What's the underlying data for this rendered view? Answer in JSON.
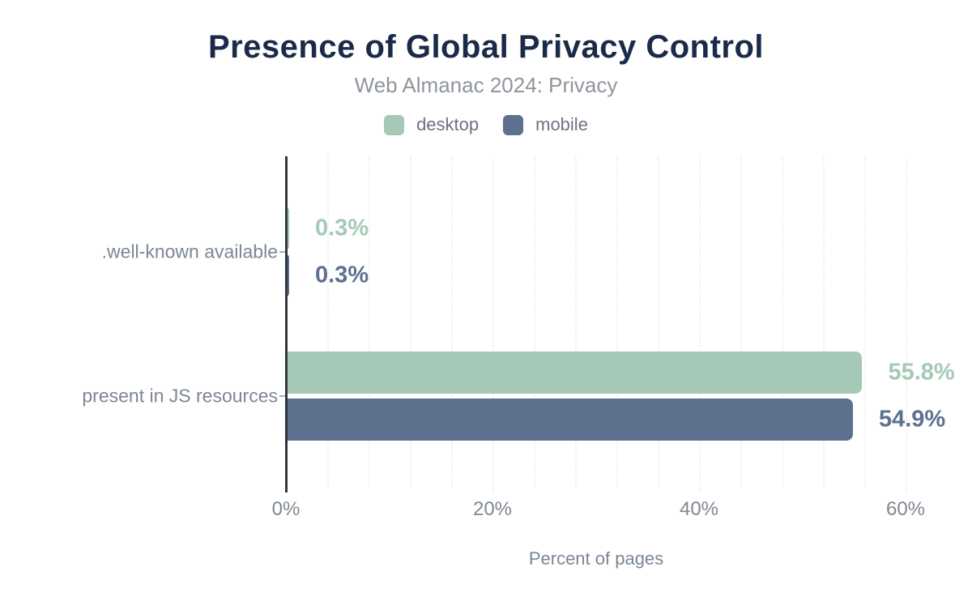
{
  "header": {
    "title": "Presence of Global Privacy Control",
    "subtitle": "Web Almanac 2024: Privacy"
  },
  "legend": [
    {
      "label": "desktop",
      "color": "#a5c9b6"
    },
    {
      "label": "mobile",
      "color": "#5d718e"
    }
  ],
  "chart_data": {
    "type": "bar",
    "orientation": "horizontal",
    "title": "Presence of Global Privacy Control",
    "subtitle": "Web Almanac 2024: Privacy",
    "categories": [
      ".well-known available",
      "present in JS resources"
    ],
    "series": [
      {
        "name": "desktop",
        "color": "#a5c9b6",
        "values": [
          0.3,
          55.8
        ],
        "value_labels": [
          "0.3%",
          "55.8%"
        ]
      },
      {
        "name": "mobile",
        "color": "#5d718e",
        "values": [
          0.3,
          54.9
        ],
        "value_labels": [
          "0.3%",
          "54.9%"
        ]
      }
    ],
    "xlabel": "Percent of pages",
    "ylabel": "",
    "xlim": [
      0,
      60
    ],
    "xticks": {
      "values": [
        0,
        20,
        40,
        60
      ],
      "labels": [
        "0%",
        "20%",
        "40%",
        "60%"
      ]
    },
    "minor_grid_interval_pct": 4,
    "grid": true,
    "legend_position": "top"
  },
  "colors": {
    "title": "#1a2b49",
    "subtitle": "#8f959c",
    "axis_line": "#30373e",
    "gridline": "#edf0f1",
    "tick_label": "#7f8791",
    "category_label": "#7d8694",
    "desktop": "#a5c9b6",
    "mobile": "#5d718e"
  }
}
